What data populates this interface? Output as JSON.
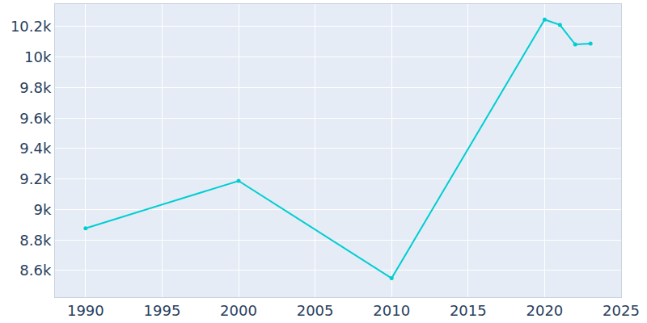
{
  "chart_data": {
    "type": "line",
    "x": [
      1990,
      2000,
      2010,
      2020,
      2021,
      2022,
      2023
    ],
    "values": [
      8877,
      9188,
      8549,
      10246,
      10211,
      10083,
      10088
    ],
    "color": "#00ced1",
    "marker": "circle",
    "xlim": [
      1988,
      2025
    ],
    "xticks": [
      1990,
      1995,
      2000,
      2005,
      2010,
      2015,
      2020,
      2025
    ],
    "ylim": [
      8425,
      10348
    ],
    "yticks": [
      {
        "value": 8600,
        "label": "8.6k"
      },
      {
        "value": 8800,
        "label": "8.8k"
      },
      {
        "value": 9000,
        "label": "9k"
      },
      {
        "value": 9200,
        "label": "9.2k"
      },
      {
        "value": 9400,
        "label": "9.4k"
      },
      {
        "value": 9600,
        "label": "9.6k"
      },
      {
        "value": 9800,
        "label": "9.8k"
      },
      {
        "value": 10000,
        "label": "10k"
      },
      {
        "value": 10200,
        "label": "10.2k"
      }
    ],
    "grid": true
  }
}
